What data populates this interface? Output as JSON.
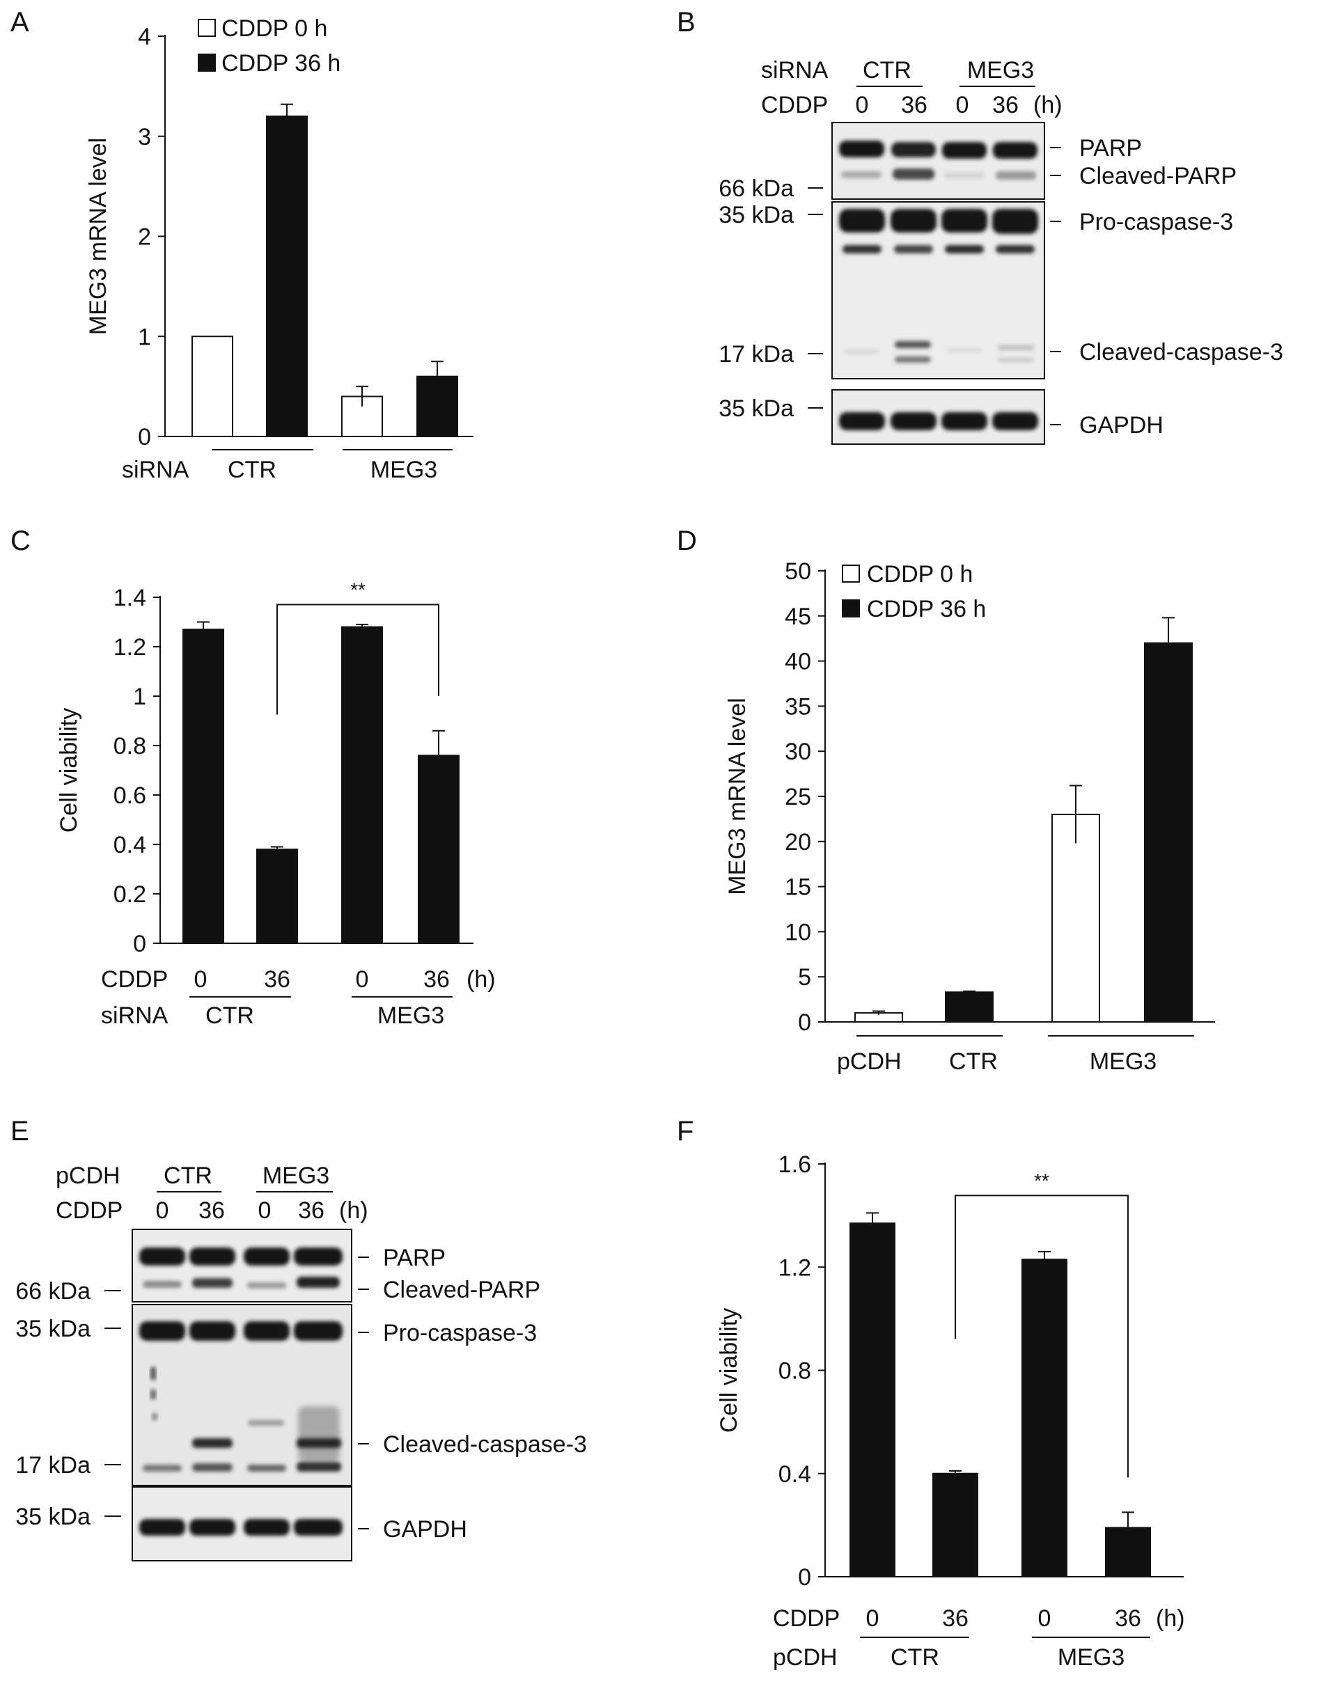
{
  "panels": {
    "A": {
      "letter": "A",
      "legend": [
        {
          "label": "CDDP 0 h",
          "fill": "white"
        },
        {
          "label": "CDDP 36 h",
          "fill": "black"
        }
      ],
      "row_label": "siRNA",
      "groups": [
        "CTR",
        "MEG3"
      ]
    },
    "B": {
      "letter": "B",
      "row1_label": "siRNA",
      "row2_label": "CDDP",
      "groups": [
        "CTR",
        "MEG3"
      ],
      "lanes": [
        "0",
        "36",
        "0",
        "36"
      ],
      "unit": "(h)",
      "bands": [
        "PARP",
        "Cleaved-PARP",
        "Pro-caspase-3",
        "Cleaved-caspase-3",
        "GAPDH"
      ],
      "markers": [
        "66 kDa",
        "35 kDa",
        "17 kDa",
        "35 kDa"
      ]
    },
    "C": {
      "letter": "C",
      "row1_label": "CDDP",
      "row2_label": "siRNA",
      "lanes": [
        "0",
        "36",
        "0",
        "36"
      ],
      "unit": "(h)",
      "groups": [
        "CTR",
        "MEG3"
      ],
      "significance": "**"
    },
    "D": {
      "letter": "D",
      "legend": [
        {
          "label": "CDDP 0 h",
          "fill": "white"
        },
        {
          "label": "CDDP 36 h",
          "fill": "black"
        }
      ],
      "row_label": "pCDH",
      "groups": [
        "CTR",
        "MEG3"
      ]
    },
    "E": {
      "letter": "E",
      "row1_label": "pCDH",
      "row2_label": "CDDP",
      "groups": [
        "CTR",
        "MEG3"
      ],
      "lanes": [
        "0",
        "36",
        "0",
        "36"
      ],
      "unit": "(h)",
      "bands": [
        "PARP",
        "Cleaved-PARP",
        "Pro-caspase-3",
        "Cleaved-caspase-3",
        "GAPDH"
      ],
      "markers": [
        "66 kDa",
        "35 kDa",
        "17 kDa",
        "35 kDa"
      ]
    },
    "F": {
      "letter": "F",
      "row1_label": "CDDP",
      "row2_label": "pCDH",
      "lanes": [
        "0",
        "36",
        "0",
        "36"
      ],
      "unit": "(h)",
      "groups": [
        "CTR",
        "MEG3"
      ],
      "significance": "**"
    }
  },
  "chart_data": [
    {
      "panel": "A",
      "type": "bar",
      "ylabel": "MEG3 mRNA level",
      "ylim": [
        0,
        4
      ],
      "yticks": [
        0,
        1,
        2,
        3,
        4
      ],
      "bars": [
        {
          "group": "CTR",
          "series": "CDDP 0 h",
          "value": 1.0,
          "error": 0
        },
        {
          "group": "CTR",
          "series": "CDDP 36 h",
          "value": 3.2,
          "error": 0.12
        },
        {
          "group": "MEG3",
          "series": "CDDP 0 h",
          "value": 0.4,
          "error": 0.1
        },
        {
          "group": "MEG3",
          "series": "CDDP 36 h",
          "value": 0.6,
          "error": 0.15
        }
      ]
    },
    {
      "panel": "C",
      "type": "bar",
      "ylabel": "Cell viability",
      "ylim": [
        0,
        1.4
      ],
      "yticks": [
        0,
        0.2,
        0.4,
        0.6,
        0.8,
        1,
        1.2,
        1.4
      ],
      "ytick_labels": [
        "0",
        "0.2",
        "0.4",
        "0.6",
        "0.8",
        "1",
        "1.2",
        "1.4"
      ],
      "bars": [
        {
          "group": "CTR",
          "cddp": "0",
          "value": 1.27,
          "error": 0.03
        },
        {
          "group": "CTR",
          "cddp": "36",
          "value": 0.38,
          "error": 0.01
        },
        {
          "group": "MEG3",
          "cddp": "0",
          "value": 1.28,
          "error": 0.01
        },
        {
          "group": "MEG3",
          "cddp": "36",
          "value": 0.76,
          "error": 0.1
        }
      ],
      "comparison": {
        "from_bar": 1,
        "to_bar": 3,
        "label": "**"
      }
    },
    {
      "panel": "D",
      "type": "bar",
      "ylabel": "MEG3 mRNA level",
      "ylim": [
        0,
        50
      ],
      "yticks": [
        0,
        5,
        10,
        15,
        20,
        25,
        30,
        35,
        40,
        45,
        50
      ],
      "bars": [
        {
          "group": "CTR",
          "series": "CDDP 0 h",
          "value": 1.0,
          "error": 0.2
        },
        {
          "group": "CTR",
          "series": "CDDP 36 h",
          "value": 3.3,
          "error": 0.1
        },
        {
          "group": "MEG3",
          "series": "CDDP 0 h",
          "value": 23.0,
          "error": 3.2
        },
        {
          "group": "MEG3",
          "series": "CDDP 36 h",
          "value": 42.0,
          "error": 2.8
        }
      ]
    },
    {
      "panel": "F",
      "type": "bar",
      "ylabel": "Cell viability",
      "ylim": [
        0,
        1.6
      ],
      "yticks": [
        0,
        0.4,
        0.8,
        1.2,
        1.6
      ],
      "ytick_labels": [
        "0",
        "0.4",
        "0.8",
        "1.2",
        "1.6"
      ],
      "bars": [
        {
          "group": "CTR",
          "cddp": "0",
          "value": 1.37,
          "error": 0.04
        },
        {
          "group": "CTR",
          "cddp": "36",
          "value": 0.4,
          "error": 0.01
        },
        {
          "group": "MEG3",
          "cddp": "0",
          "value": 1.23,
          "error": 0.03
        },
        {
          "group": "MEG3",
          "cddp": "36",
          "value": 0.19,
          "error": 0.06
        }
      ],
      "comparison": {
        "from_bar": 1,
        "to_bar": 3,
        "label": "**"
      }
    }
  ]
}
